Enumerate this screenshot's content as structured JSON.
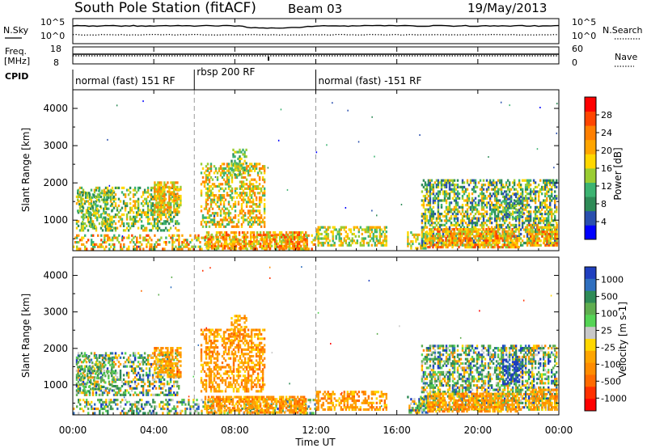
{
  "header": {
    "title": "South Pole Station (fitACF)",
    "beam": "Beam 03",
    "date": "19/May/2013"
  },
  "nsky_panel": {
    "left_label": "N.Sky",
    "right_label": "N.Search",
    "left_ticks": [
      "10^5",
      "10^0"
    ],
    "right_ticks": [
      "10^5",
      "10^0"
    ]
  },
  "freq_panel": {
    "left_label_line1": "Freq.",
    "left_label_line2": "[MHz]",
    "right_label": "Nave",
    "left_ticks": [
      "18",
      "8"
    ],
    "right_ticks": [
      "60",
      "0"
    ]
  },
  "cpid": {
    "label": "CPID",
    "segments": [
      {
        "start_hour": 0,
        "end_hour": 6,
        "text": "normal (fast) 151 RF"
      },
      {
        "start_hour": 6,
        "end_hour": 12,
        "text": "rbsp 200 RF"
      },
      {
        "start_hour": 12,
        "end_hour": 24,
        "text": "normal (fast) -151 RF"
      }
    ]
  },
  "chart_data": [
    {
      "type": "heatmap",
      "name": "power",
      "ylabel": "Slant Range [km]",
      "y_ticks": [
        1000,
        2000,
        3000,
        4000
      ],
      "ylim": [
        180,
        4500
      ],
      "colorbar": {
        "label": "Power [dB]",
        "range": [
          0,
          32
        ],
        "tick_values": [
          4,
          8,
          12,
          16,
          20,
          24,
          28
        ],
        "tick_labels": [
          "4",
          "8",
          "12",
          "16",
          "20",
          "24",
          "28"
        ],
        "colors": [
          "#0000ff",
          "#2a4fae",
          "#2e8b57",
          "#3cb371",
          "#9acd32",
          "#ffd700",
          "#ffa500",
          "#ff7f00",
          "#ff4500",
          "#ff0000"
        ]
      }
    },
    {
      "type": "heatmap",
      "name": "velocity",
      "ylabel": "Slant Range [km]",
      "y_ticks": [
        1000,
        2000,
        3000,
        4000
      ],
      "ylim": [
        180,
        4500
      ],
      "colorbar": {
        "label": "Velocity [m s-1]",
        "tick_labels": [
          "1000",
          "500",
          "100",
          "25",
          "-25",
          "-100",
          "-500",
          "-1000"
        ],
        "colors": [
          "#1f3fbf",
          "#2f6fbf",
          "#2e8b57",
          "#5fae4f",
          "#55d455",
          "#c8c8c8",
          "#ffd700",
          "#ffa500",
          "#ff8c00",
          "#ff6a00",
          "#ff3000",
          "#ff0000"
        ]
      }
    }
  ],
  "time_axis": {
    "xlim_hours": [
      0,
      24
    ],
    "tick_labels": [
      "00:00",
      "04:00",
      "08:00",
      "12:00",
      "16:00",
      "20:00",
      "00:00"
    ],
    "xlabel": "Time UT"
  }
}
